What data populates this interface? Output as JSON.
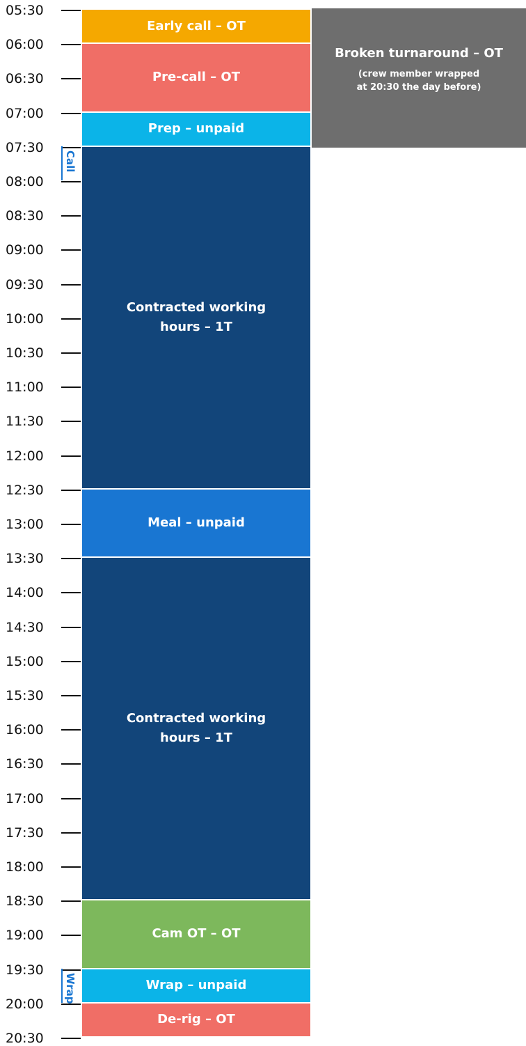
{
  "times": [
    "05:30",
    "06:00",
    "06:30",
    "07:00",
    "07:30",
    "08:00",
    "08:30",
    "09:00",
    "09:30",
    "10:00",
    "10:30",
    "11:00",
    "11:30",
    "12:00",
    "12:30",
    "13:00",
    "13:30",
    "14:00",
    "14:30",
    "15:00",
    "15:30",
    "16:00",
    "16:30",
    "17:00",
    "17:30",
    "18:00",
    "18:30",
    "19:00",
    "19:30",
    "20:00",
    "20:30"
  ],
  "markers": [
    {
      "label": "Call"
    },
    {
      "label": "Wrap"
    }
  ],
  "blocks": [
    {
      "lines": [
        "Early call – OT"
      ]
    },
    {
      "lines": [
        "Pre-call – OT"
      ]
    },
    {
      "lines": [
        "Prep – unpaid"
      ]
    },
    {
      "lines": [
        "Contracted working",
        "hours – 1T"
      ]
    },
    {
      "lines": [
        "Meal – unpaid"
      ]
    },
    {
      "lines": [
        "Contracted working",
        "hours – 1T"
      ]
    },
    {
      "lines": [
        "Cam OT – OT"
      ]
    },
    {
      "lines": [
        "Wrap – unpaid"
      ]
    },
    {
      "lines": [
        "De-rig – OT"
      ]
    }
  ],
  "side_note": {
    "title": "Broken turnaround – OT",
    "lines": [
      "(crew member wrapped",
      "at 20:30 the day before)"
    ]
  }
}
